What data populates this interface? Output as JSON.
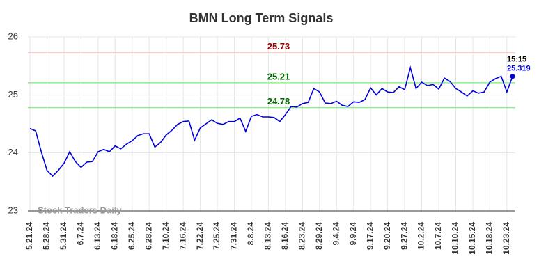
{
  "chart_data": {
    "type": "line",
    "title": "BMN Long Term Signals",
    "categories": [
      "5.21.24",
      null,
      null,
      "5.28.24",
      null,
      null,
      "5.31.24",
      null,
      null,
      "6.7.24",
      null,
      null,
      "6.13.24",
      null,
      null,
      "6.18.24",
      null,
      null,
      "6.25.24",
      null,
      null,
      "6.28.24",
      null,
      null,
      "7.10.24",
      null,
      null,
      "7.16.24",
      null,
      null,
      "7.22.24",
      null,
      null,
      "7.25.24",
      null,
      null,
      "7.31.24",
      null,
      null,
      "8.8.24",
      null,
      null,
      "8.13.24",
      null,
      null,
      "8.16.24",
      null,
      null,
      "8.23.24",
      null,
      null,
      "8.29.24",
      null,
      null,
      "9.4.24",
      null,
      null,
      "9.9.24",
      null,
      null,
      "9.17.24",
      null,
      null,
      "9.20.24",
      null,
      null,
      "9.27.24",
      null,
      null,
      "10.2.24",
      null,
      null,
      "10.7.24",
      null,
      null,
      "10.10.24",
      null,
      null,
      "10.15.24",
      null,
      null,
      "10.18.24",
      null,
      null,
      "10.23.24",
      null
    ],
    "series": [
      {
        "color": "#0000dd",
        "values": [
          24.42,
          24.38,
          24.02,
          23.7,
          23.6,
          23.7,
          23.82,
          24.02,
          23.85,
          23.75,
          23.84,
          23.85,
          24.02,
          24.06,
          24.02,
          24.12,
          24.07,
          24.15,
          24.21,
          24.3,
          24.33,
          24.33,
          24.1,
          24.18,
          24.31,
          24.39,
          24.49,
          24.54,
          24.55,
          24.22,
          24.43,
          24.5,
          24.57,
          24.51,
          24.49,
          24.54,
          24.54,
          24.6,
          24.37,
          24.63,
          24.66,
          24.62,
          24.62,
          24.61,
          24.54,
          24.66,
          24.8,
          24.79,
          24.85,
          24.87,
          25.11,
          25.05,
          24.86,
          24.85,
          24.89,
          24.82,
          24.8,
          24.88,
          24.87,
          24.92,
          25.12,
          25.0,
          25.11,
          25.05,
          25.04,
          25.14,
          25.09,
          25.47,
          25.11,
          25.22,
          25.16,
          25.18,
          25.1,
          25.29,
          25.23,
          25.11,
          25.05,
          24.98,
          25.07,
          25.03,
          25.05,
          25.22,
          25.28,
          25.32,
          25.05,
          25.319
        ]
      }
    ],
    "last_label": "15:15",
    "hlines": [
      {
        "value": 25.73,
        "color": "#ffcccc",
        "label_color": "#990000"
      },
      {
        "value": 25.21,
        "color": "#90ee90",
        "label_color": "#006600"
      },
      {
        "value": 24.78,
        "color": "#90ee90",
        "label_color": "#006600"
      }
    ],
    "watermark": "Stock Traders Daily",
    "ylim": [
      23,
      26
    ],
    "yticks": [
      23,
      24,
      25,
      26
    ],
    "grid": true
  }
}
